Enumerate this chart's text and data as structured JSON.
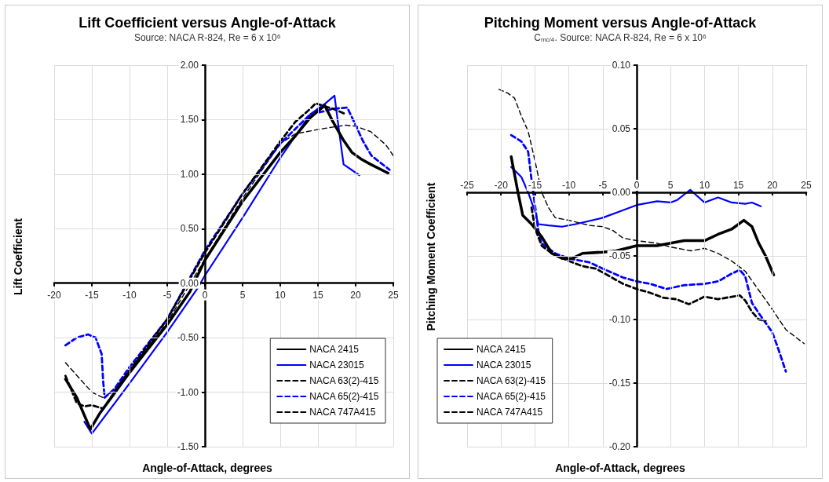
{
  "chart_data": [
    {
      "type": "line",
      "title": "Lift Coefficient versus Angle-of-Attack",
      "subtitle": "Source: NACA R-824, Re = 6 x 10$^{6}$",
      "xlabel": "Angle-of-Attack, degrees",
      "ylabel": "Lift Coefficient",
      "xlim": [
        -20,
        25
      ],
      "xticks": [
        -20,
        -15,
        -10,
        -5,
        0,
        5,
        10,
        15,
        20,
        25
      ],
      "ylim": [
        -1.5,
        2
      ],
      "yticks": [
        {
          "value": -1.5,
          "label": "-1.50"
        },
        {
          "value": -1,
          "label": "-1.00"
        },
        {
          "value": -0.5,
          "label": "-0.50"
        },
        {
          "value": 0,
          "label": "0.00"
        },
        {
          "value": 0.5,
          "label": "0.50"
        },
        {
          "value": 1,
          "label": "1.00"
        },
        {
          "value": 1.5,
          "label": "1.50"
        },
        {
          "value": 2,
          "label": "2.00"
        }
      ],
      "grid": true,
      "legend": "bottom right",
      "marker": "none",
      "series": [
        {
          "name": "NACA 2415",
          "color": "#000000",
          "line_style": "solid",
          "x": [
            -18.5,
            -17,
            -15.2,
            -14,
            -10,
            -5,
            -2,
            0,
            5,
            10,
            12,
            14,
            15.9,
            17,
            18.4,
            19.5,
            20.7,
            22,
            24.3
          ],
          "values": [
            -0.88,
            -1.05,
            -1.34,
            -1.2,
            -0.82,
            -0.38,
            -0.08,
            0.21,
            0.75,
            1.2,
            1.35,
            1.52,
            1.63,
            1.48,
            1.31,
            1.2,
            1.14,
            1.09,
            1.01
          ]
        },
        {
          "name": "NACA 23015",
          "color": "#0000ff",
          "line_style": "solid",
          "x": [
            -16,
            -15,
            -10,
            -5,
            -1,
            0,
            5,
            10,
            12,
            14,
            16,
            17.2,
            17.7,
            18.4,
            20.5
          ],
          "values": [
            -1.27,
            -1.38,
            -0.92,
            -0.45,
            -0.05,
            0.07,
            0.6,
            1.15,
            1.35,
            1.55,
            1.65,
            1.72,
            1.45,
            1.09,
            0.99
          ]
        },
        {
          "name": "NACA 63(2)-415",
          "color": "#000000",
          "line_style": "dashed",
          "x": [
            -18.5,
            -17,
            -16,
            -15,
            -13.5,
            -10,
            -5,
            0,
            5,
            10,
            12,
            14,
            14.7,
            16,
            17,
            18.7
          ],
          "values": [
            -0.85,
            -1.1,
            -1.13,
            -1.12,
            -1.15,
            -0.8,
            -0.33,
            0.28,
            0.82,
            1.3,
            1.48,
            1.6,
            1.65,
            1.62,
            1.6,
            1.55
          ]
        },
        {
          "name": "NACA 65(2)-415",
          "color": "#0000ff",
          "line_style": "dashed",
          "x": [
            -18.5,
            -17,
            -15.5,
            -14.5,
            -13.7,
            -13.5,
            -13.3,
            -12,
            -10,
            -5,
            0,
            5,
            10,
            14,
            16,
            17,
            18.9,
            20,
            21,
            22.1,
            24.5
          ],
          "values": [
            -0.57,
            -0.5,
            -0.47,
            -0.5,
            -0.65,
            -0.9,
            -1.05,
            -0.97,
            -0.77,
            -0.33,
            0.3,
            0.82,
            1.28,
            1.55,
            1.58,
            1.6,
            1.61,
            1.45,
            1.3,
            1.17,
            1.04
          ]
        },
        {
          "name": "NACA 747A415",
          "color": "#000000",
          "line_style": "dashed",
          "x": [
            -18.5,
            -15,
            -13.5,
            -12,
            -10,
            -5,
            0,
            5,
            10,
            12,
            15,
            18.7,
            20,
            22,
            24,
            25
          ],
          "values": [
            -0.73,
            -1.0,
            -1.05,
            -0.98,
            -0.8,
            -0.36,
            0.22,
            0.78,
            1.28,
            1.37,
            1.41,
            1.45,
            1.44,
            1.39,
            1.27,
            1.17
          ]
        }
      ]
    },
    {
      "type": "line",
      "title": "Pitching Moment versus Angle-of-Attack",
      "subtitle": "C$_{mc/4}$. Source: NACA R-824, Re = 6 x 10$^{6}$",
      "xlabel": "Angle-of-Attack, degrees",
      "ylabel": "Pitching Moment Coefficient",
      "xlim": [
        -25,
        25
      ],
      "xticks": [
        -25,
        -20,
        -15,
        -10,
        -5,
        0,
        5,
        10,
        15,
        20,
        25
      ],
      "ylim": [
        -0.2,
        0.1
      ],
      "yticks": [
        {
          "value": -0.2,
          "label": "-0.20"
        },
        {
          "value": -0.15,
          "label": "-0.15"
        },
        {
          "value": -0.1,
          "label": "-0.10"
        },
        {
          "value": -0.05,
          "label": "-0.05"
        },
        {
          "value": 0,
          "label": "0.00"
        },
        {
          "value": 0.05,
          "label": "0.05"
        },
        {
          "value": 0.1,
          "label": "0.10"
        }
      ],
      "grid": true,
      "legend": "bottom left",
      "marker": "none",
      "series": [
        {
          "name": "NACA 2415",
          "color": "#000000",
          "line_style": "solid",
          "x": [
            -18.5,
            -17.5,
            -16.8,
            -15.5,
            -14,
            -12.5,
            -11,
            -9.5,
            -8,
            -5,
            -3,
            0,
            3,
            5,
            7,
            10,
            12,
            14,
            15.8,
            17,
            18,
            19,
            20.2
          ],
          "values": [
            0.028,
            0.0,
            -0.018,
            -0.025,
            -0.035,
            -0.048,
            -0.052,
            -0.052,
            -0.048,
            -0.047,
            -0.046,
            -0.042,
            -0.042,
            -0.04,
            -0.038,
            -0.038,
            -0.033,
            -0.029,
            -0.022,
            -0.027,
            -0.04,
            -0.05,
            -0.065
          ]
        },
        {
          "name": "NACA 23015",
          "color": "#0000ff",
          "line_style": "solid",
          "x": [
            -18.5,
            -17,
            -16,
            -15,
            -14.5,
            -13,
            -11,
            -9,
            -5,
            -2,
            0,
            3,
            5,
            6,
            7.9,
            10,
            12,
            14,
            16,
            17,
            18.3
          ],
          "values": [
            0.02,
            0.012,
            0.0,
            -0.015,
            -0.025,
            -0.026,
            -0.027,
            -0.025,
            -0.02,
            -0.014,
            -0.01,
            -0.007,
            -0.008,
            -0.006,
            0.002,
            -0.008,
            -0.004,
            -0.008,
            -0.009,
            -0.008,
            -0.011
          ]
        },
        {
          "name": "NACA 63(2)-415",
          "color": "#000000",
          "line_style": "dashed",
          "x": [
            -15.5,
            -15,
            -14,
            -12.5,
            -10,
            -8,
            -6,
            -4,
            -2,
            0,
            2,
            4,
            5.8,
            7.7,
            10,
            12,
            15.2,
            16,
            17,
            18,
            19
          ],
          "values": [
            -0.012,
            -0.028,
            -0.042,
            -0.048,
            -0.054,
            -0.058,
            -0.06,
            -0.066,
            -0.072,
            -0.076,
            -0.079,
            -0.083,
            -0.084,
            -0.088,
            -0.082,
            -0.084,
            -0.081,
            -0.085,
            -0.094,
            -0.1,
            -0.101
          ]
        },
        {
          "name": "NACA 65(2)-415",
          "color": "#0000ff",
          "line_style": "dashed",
          "x": [
            -18.5,
            -17,
            -16,
            -15.5,
            -15,
            -14.5,
            -14,
            -12,
            -10,
            -7,
            -5,
            -2,
            0,
            2,
            4.4,
            7,
            10,
            12,
            14,
            15.2,
            16,
            17,
            18,
            20,
            21,
            22
          ],
          "values": [
            0.045,
            0.04,
            0.032,
            0.01,
            -0.01,
            -0.03,
            -0.04,
            -0.048,
            -0.052,
            -0.055,
            -0.06,
            -0.067,
            -0.07,
            -0.072,
            -0.076,
            -0.073,
            -0.072,
            -0.07,
            -0.064,
            -0.061,
            -0.066,
            -0.087,
            -0.095,
            -0.11,
            -0.125,
            -0.141
          ]
        },
        {
          "name": "NACA 747A415",
          "color": "#000000",
          "line_style": "dashed",
          "x": [
            -20.3,
            -19,
            -18,
            -17,
            -16,
            -15,
            -14,
            -13,
            -12,
            -10,
            -7,
            -5,
            -3.5,
            -2,
            0,
            3,
            5,
            8,
            10,
            12,
            14,
            16,
            18,
            20,
            22,
            24.7
          ],
          "values": [
            0.081,
            0.078,
            0.074,
            0.06,
            0.048,
            0.025,
            0.0,
            -0.012,
            -0.02,
            -0.022,
            -0.026,
            -0.027,
            -0.03,
            -0.036,
            -0.038,
            -0.04,
            -0.043,
            -0.046,
            -0.044,
            -0.048,
            -0.054,
            -0.062,
            -0.077,
            -0.092,
            -0.108,
            -0.119
          ]
        }
      ]
    }
  ]
}
